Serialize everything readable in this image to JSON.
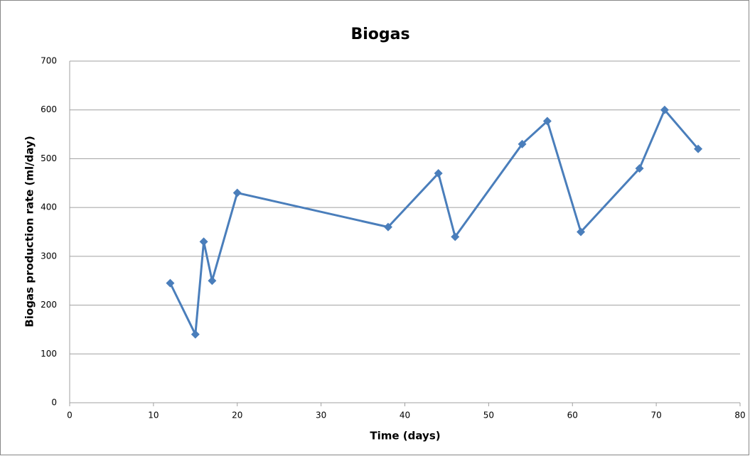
{
  "chart_data": {
    "type": "line",
    "title": "Biogas",
    "x_label": "Time (days)",
    "y_label": "Biogas production rate (ml/day)",
    "x": [
      12,
      15,
      16,
      17,
      20,
      38,
      44,
      46,
      54,
      57,
      61,
      68,
      71,
      75
    ],
    "values": [
      245,
      140,
      330,
      250,
      430,
      360,
      470,
      340,
      530,
      577,
      350,
      480,
      600,
      520
    ],
    "color": "#4a7ebb",
    "xlim": [
      0,
      80
    ],
    "xticks": [
      0,
      10,
      20,
      30,
      40,
      50,
      60,
      70,
      80
    ],
    "ylim": [
      0,
      700
    ],
    "yticks": [
      0,
      100,
      200,
      300,
      400,
      500,
      600,
      700
    ],
    "grid": true
  }
}
